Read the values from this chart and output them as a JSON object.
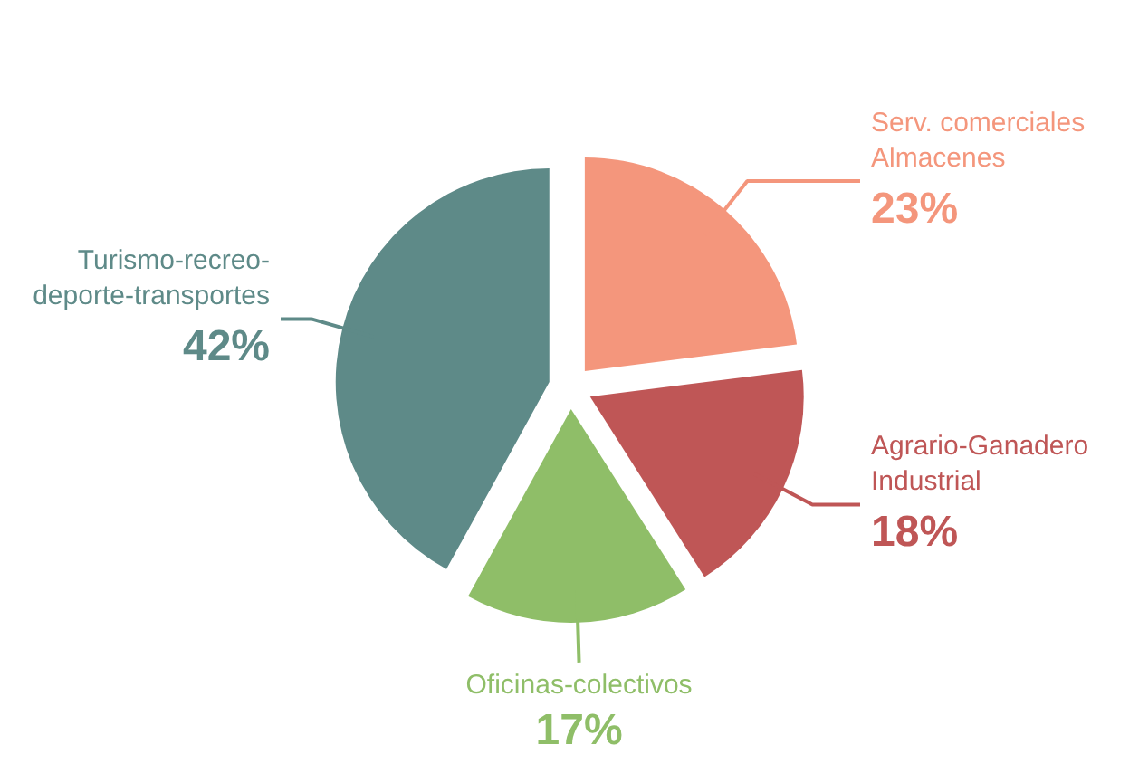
{
  "chart_data": {
    "type": "pie",
    "categories": [
      "Serv. comerciales\nAlmacenes",
      "Agrario-Ganadero\nIndustrial",
      "Oficinas-colectivos",
      "Turismo-recreo-\ndeporte-transportes"
    ],
    "values": [
      23,
      18,
      17,
      42
    ],
    "colors": [
      "#f4967c",
      "#bf5656",
      "#8fbe68",
      "#5e8a88"
    ],
    "value_labels": [
      "23%",
      "18%",
      "17%",
      "42%"
    ]
  }
}
